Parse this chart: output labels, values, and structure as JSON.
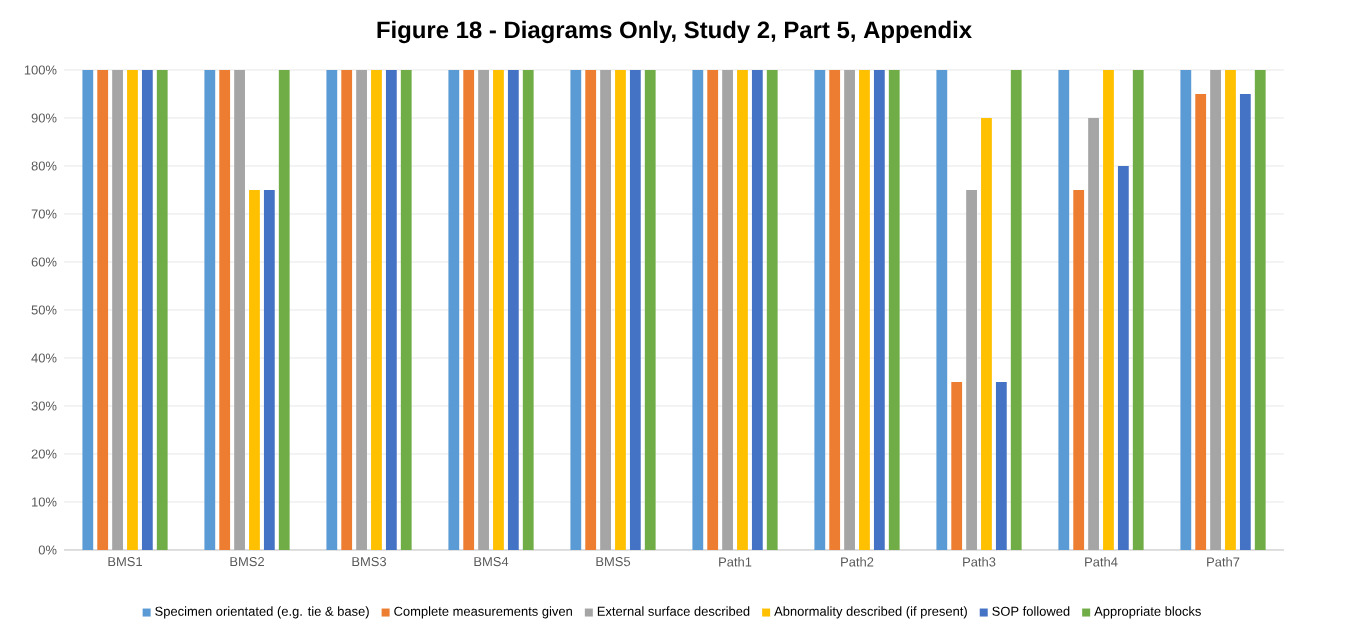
{
  "chart_data": {
    "type": "bar",
    "title": "Figure 18 - Diagrams Only, Study 2, Part 5,  Appendix",
    "categories": [
      "BMS1",
      "BMS2",
      "BMS3",
      "BMS4",
      "BMS5",
      "Path1",
      "Path2",
      "Path3",
      "Path4",
      "Path7"
    ],
    "series": [
      {
        "name": "Specimen orientated (e.g. tie & base)",
        "color": "#5b9bd5",
        "values": [
          100,
          100,
          100,
          100,
          100,
          100,
          100,
          100,
          100,
          100
        ]
      },
      {
        "name": "Complete measurements given",
        "color": "#ed7d31",
        "values": [
          100,
          100,
          100,
          100,
          100,
          100,
          100,
          35,
          75,
          95
        ]
      },
      {
        "name": "External surface described",
        "color": "#a5a5a5",
        "values": [
          100,
          100,
          100,
          100,
          100,
          100,
          100,
          75,
          90,
          100
        ]
      },
      {
        "name": "Abnormality described (if present)",
        "color": "#ffc000",
        "values": [
          100,
          75,
          100,
          100,
          100,
          100,
          100,
          90,
          100,
          100
        ]
      },
      {
        "name": "SOP followed",
        "color": "#4472c4",
        "values": [
          100,
          75,
          100,
          100,
          100,
          100,
          100,
          35,
          80,
          95
        ]
      },
      {
        "name": "Appropriate blocks",
        "color": "#70ad47",
        "values": [
          100,
          100,
          100,
          100,
          100,
          100,
          100,
          100,
          100,
          100
        ]
      }
    ],
    "ylim": [
      0,
      100
    ],
    "yticks": [
      {
        "value": 0,
        "label": "0%"
      },
      {
        "value": 10,
        "label": "10%"
      },
      {
        "value": 20,
        "label": "20%"
      },
      {
        "value": 30,
        "label": "30%"
      },
      {
        "value": 40,
        "label": "40%"
      },
      {
        "value": 50,
        "label": "50%"
      },
      {
        "value": 60,
        "label": "60%"
      },
      {
        "value": 70,
        "label": "70%"
      },
      {
        "value": 80,
        "label": "80%"
      },
      {
        "value": 90,
        "label": "90%"
      },
      {
        "value": 100,
        "label": "100%"
      }
    ],
    "grid": "y",
    "legend": "bottom"
  }
}
